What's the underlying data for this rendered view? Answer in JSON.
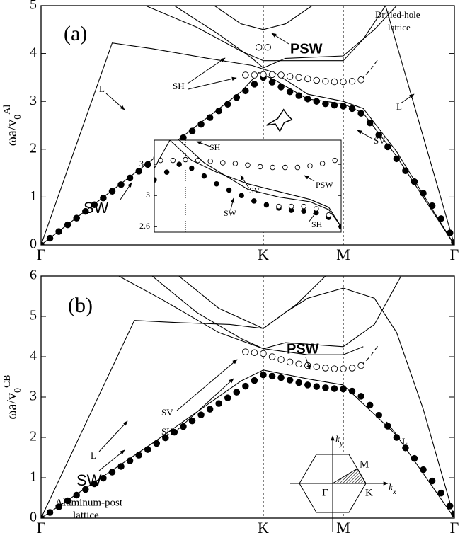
{
  "chart_data": [
    {
      "type": "line",
      "y_label": "ωa/v",
      "y_label_sub": "0",
      "y_label_sup": "Al",
      "xlim": [
        0,
        1.86
      ],
      "ylim": [
        0,
        5
      ],
      "yticks": [
        0,
        1,
        2,
        3,
        4,
        5
      ],
      "xticks": [
        {
          "value": 0,
          "label": "Γ"
        },
        {
          "value": 1,
          "label": "K"
        },
        {
          "value": 1.36,
          "label": "M"
        },
        {
          "value": 1.86,
          "label": "Γ"
        }
      ],
      "xgrid": true,
      "annotations": [
        "(a)",
        "PSW",
        "Drilled-hole",
        "lattice",
        "L",
        "SH",
        "SV",
        "SW",
        "L"
      ],
      "series": [
        {
          "marker": "none",
          "x": [
            0,
            0.32,
            0.5,
            0.75,
            0.95,
            1.05,
            1.2,
            1.36,
            1.45,
            1.6,
            1.86
          ],
          "values": [
            0,
            4.22,
            4.1,
            3.9,
            3.75,
            3.6,
            3.15,
            3.0,
            2.85,
            1.95,
            0
          ]
        },
        {
          "marker": "none",
          "x": [
            0,
            0.5,
            0.9,
            0.98,
            1.05,
            1.2,
            1.36,
            1.45,
            1.6,
            1.86
          ],
          "values": [
            0,
            1.78,
            3.2,
            3.6,
            3.45,
            3.05,
            2.95,
            2.75,
            1.85,
            0
          ]
        },
        {
          "marker": "none",
          "x": [
            0.47,
            0.7,
            0.9,
            1.0,
            1.1,
            1.36,
            1.45,
            1.55
          ],
          "values": [
            5,
            4.55,
            4.05,
            3.85,
            3.85,
            3.85,
            4.3,
            5
          ]
        },
        {
          "marker": "none",
          "x": [
            0.6,
            0.8,
            0.95,
            1.0,
            1.1,
            1.36,
            1.5,
            1.6
          ],
          "values": [
            5,
            4.4,
            3.9,
            3.7,
            3.9,
            3.95,
            4.5,
            5
          ]
        },
        {
          "marker": "none",
          "x": [
            0.78,
            0.9,
            1.0,
            1.1,
            1.22
          ],
          "values": [
            5,
            4.62,
            4.5,
            4.62,
            5
          ]
        },
        {
          "marker": "none",
          "x": [
            1.55,
            1.86
          ],
          "values": [
            5,
            0
          ]
        },
        {
          "marker": "none",
          "dash": true,
          "x": [
            1.44,
            1.48,
            1.52
          ],
          "values": [
            3.45,
            3.65,
            3.9
          ]
        },
        {
          "marker": "filled",
          "x": [
            0,
            0.04,
            0.08,
            0.12,
            0.16,
            0.2,
            0.24,
            0.28,
            0.32,
            0.36,
            0.4,
            0.44,
            0.48,
            0.52,
            0.56,
            0.6,
            0.64,
            0.68,
            0.72,
            0.76,
            0.8,
            0.84,
            0.88,
            0.92,
            0.96,
            1,
            1.04,
            1.08,
            1.12,
            1.16,
            1.2,
            1.24,
            1.28,
            1.32,
            1.36,
            1.4,
            1.44,
            1.48,
            1.52,
            1.56,
            1.6,
            1.64,
            1.68,
            1.72,
            1.76,
            1.8,
            1.84,
            1.86
          ],
          "values": [
            0,
            0.14,
            0.28,
            0.42,
            0.56,
            0.7,
            0.84,
            0.98,
            1.12,
            1.26,
            1.4,
            1.54,
            1.68,
            1.82,
            1.96,
            2.1,
            2.24,
            2.38,
            2.52,
            2.66,
            2.8,
            2.94,
            3.08,
            3.22,
            3.36,
            3.5,
            3.4,
            3.3,
            3.2,
            3.12,
            3.05,
            3.0,
            2.95,
            2.92,
            2.9,
            2.85,
            2.75,
            2.55,
            2.3,
            2.05,
            1.8,
            1.55,
            1.32,
            1.08,
            0.82,
            0.55,
            0.25,
            0.05
          ]
        },
        {
          "marker": "open",
          "x": [
            0.92,
            0.96,
            1.0,
            1.04,
            1.08,
            1.12,
            1.16,
            1.2,
            1.24,
            1.28,
            1.32,
            1.36,
            1.4,
            1.44
          ],
          "values": [
            3.55,
            3.55,
            3.56,
            3.56,
            3.55,
            3.52,
            3.5,
            3.47,
            3.44,
            3.42,
            3.41,
            3.41,
            3.42,
            3.45
          ]
        },
        {
          "marker": "open",
          "x": [
            0.98,
            1.02
          ],
          "values": [
            4.13,
            4.13
          ]
        }
      ]
    },
    {
      "type": "line",
      "xlim": [
        0.9,
        1.5
      ],
      "ylim": [
        2.53,
        3.71
      ],
      "yticks": [
        2.6,
        3,
        3.4
      ],
      "vlines": [
        1
      ],
      "annotations": [
        "SH",
        "SV",
        "SW",
        "PSW",
        "SH"
      ],
      "series": [
        {
          "marker": "none",
          "x": [
            0.9,
            0.95,
            1.02,
            1.1,
            1.2,
            1.3,
            1.4,
            1.46,
            1.5
          ],
          "values": [
            3.35,
            3.71,
            3.45,
            3.3,
            3.15,
            3.05,
            2.95,
            2.85,
            2.6
          ]
        },
        {
          "marker": "none",
          "x": [
            0.98,
            1.06,
            1.2,
            1.3,
            1.4,
            1.46,
            1.5
          ],
          "values": [
            3.71,
            3.42,
            3.08,
            2.98,
            2.92,
            2.82,
            2.6
          ]
        },
        {
          "marker": "open",
          "x": [
            0.92,
            0.96,
            1.0,
            1.04,
            1.08,
            1.12,
            1.16,
            1.2,
            1.24,
            1.28,
            1.32,
            1.36,
            1.4,
            1.44,
            1.48
          ],
          "values": [
            3.45,
            3.45,
            3.46,
            3.45,
            3.44,
            3.42,
            3.41,
            3.39,
            3.37,
            3.36,
            3.36,
            3.36,
            3.38,
            3.41,
            3.45
          ]
        },
        {
          "marker": "filled",
          "x": [
            0.9,
            0.94,
            0.98,
            1.02,
            1.06,
            1.1,
            1.14,
            1.18,
            1.22,
            1.26,
            1.3,
            1.34,
            1.38,
            1.42,
            1.46,
            1.5
          ],
          "values": [
            3.2,
            3.3,
            3.4,
            3.35,
            3.25,
            3.15,
            3.07,
            3.0,
            2.93,
            2.88,
            2.84,
            2.81,
            2.8,
            2.78,
            2.72,
            2.6
          ]
        },
        {
          "marker": "open",
          "x": [
            1.3,
            1.34,
            1.38,
            1.42,
            1.46
          ],
          "values": [
            2.86,
            2.86,
            2.86,
            2.83,
            2.75
          ]
        }
      ]
    },
    {
      "type": "line",
      "y_label": "ωa/v",
      "y_label_sub": "0",
      "y_label_sup": "CB",
      "xlim": [
        0,
        1.86
      ],
      "ylim": [
        0,
        6
      ],
      "yticks": [
        0,
        1,
        2,
        3,
        4,
        5,
        6
      ],
      "xticks": [
        {
          "value": 0,
          "label": "Γ"
        },
        {
          "value": 1,
          "label": "K"
        },
        {
          "value": 1.36,
          "label": "M"
        },
        {
          "value": 1.86,
          "label": "Γ"
        }
      ],
      "xgrid": true,
      "annotations": [
        "(b)",
        "PSW",
        "SV",
        "SH",
        "L",
        "L",
        "SW",
        "Aluminum-post",
        "lattice",
        "k",
        "y",
        "k",
        "x",
        "M",
        "Γ",
        "K"
      ],
      "series": [
        {
          "marker": "none",
          "x": [
            0,
            0.42,
            0.6,
            0.85,
            1.0,
            1.1,
            1.2,
            1.36,
            1.5,
            1.6,
            1.72,
            1.86
          ],
          "values": [
            0,
            4.9,
            4.85,
            4.8,
            4.7,
            5.1,
            5.45,
            5.7,
            5.45,
            4.6,
            2.7,
            0
          ]
        },
        {
          "marker": "none",
          "x": [
            0,
            0.5,
            0.9,
            1.0,
            1.2,
            1.36,
            1.6,
            1.86
          ],
          "values": [
            0,
            1.85,
            3.4,
            3.67,
            3.45,
            3.3,
            2.05,
            0
          ]
        },
        {
          "marker": "none",
          "x": [
            0.35,
            0.55,
            0.8,
            1.0,
            1.2,
            1.36,
            1.45
          ],
          "values": [
            6,
            5.4,
            4.6,
            4.2,
            4.05,
            4.05,
            4.25
          ]
        },
        {
          "marker": "none",
          "x": [
            0.5,
            0.7,
            0.9,
            1.0,
            1.1,
            1.36,
            1.5,
            1.62
          ],
          "values": [
            6,
            5.1,
            4.45,
            4.2,
            4.35,
            4.25,
            4.8,
            6
          ]
        },
        {
          "marker": "none",
          "x": [
            0.62,
            0.8,
            1.0,
            1.15,
            1.28
          ],
          "values": [
            6,
            5.2,
            4.7,
            5.3,
            6
          ]
        },
        {
          "marker": "none",
          "dash": true,
          "x": [
            1.44,
            1.48,
            1.52
          ],
          "values": [
            3.78,
            4.0,
            4.3
          ]
        },
        {
          "marker": "filled",
          "x": [
            0,
            0.04,
            0.08,
            0.12,
            0.16,
            0.2,
            0.24,
            0.28,
            0.32,
            0.36,
            0.4,
            0.44,
            0.48,
            0.52,
            0.56,
            0.6,
            0.64,
            0.68,
            0.72,
            0.76,
            0.8,
            0.84,
            0.88,
            0.92,
            0.96,
            1,
            1.04,
            1.08,
            1.12,
            1.16,
            1.2,
            1.24,
            1.28,
            1.32,
            1.36,
            1.4,
            1.44,
            1.48,
            1.52,
            1.56,
            1.6,
            1.64,
            1.68,
            1.72,
            1.76,
            1.8,
            1.84,
            1.86
          ],
          "values": [
            0,
            0.14,
            0.28,
            0.43,
            0.57,
            0.71,
            0.85,
            0.99,
            1.14,
            1.28,
            1.42,
            1.56,
            1.7,
            1.85,
            1.99,
            2.13,
            2.27,
            2.41,
            2.56,
            2.7,
            2.84,
            2.98,
            3.12,
            3.27,
            3.41,
            3.55,
            3.52,
            3.48,
            3.42,
            3.36,
            3.3,
            3.26,
            3.23,
            3.21,
            3.2,
            3.15,
            3.02,
            2.8,
            2.55,
            2.28,
            2.0,
            1.74,
            1.48,
            1.2,
            0.92,
            0.62,
            0.3,
            0.1
          ]
        },
        {
          "marker": "open",
          "x": [
            0.92,
            0.96,
            1.0,
            1.04,
            1.08,
            1.12,
            1.16,
            1.2,
            1.24,
            1.28,
            1.32,
            1.36,
            1.4,
            1.44
          ],
          "values": [
            4.12,
            4.1,
            4.08,
            4.0,
            3.93,
            3.87,
            3.82,
            3.78,
            3.75,
            3.72,
            3.7,
            3.7,
            3.72,
            3.78
          ]
        }
      ]
    }
  ]
}
